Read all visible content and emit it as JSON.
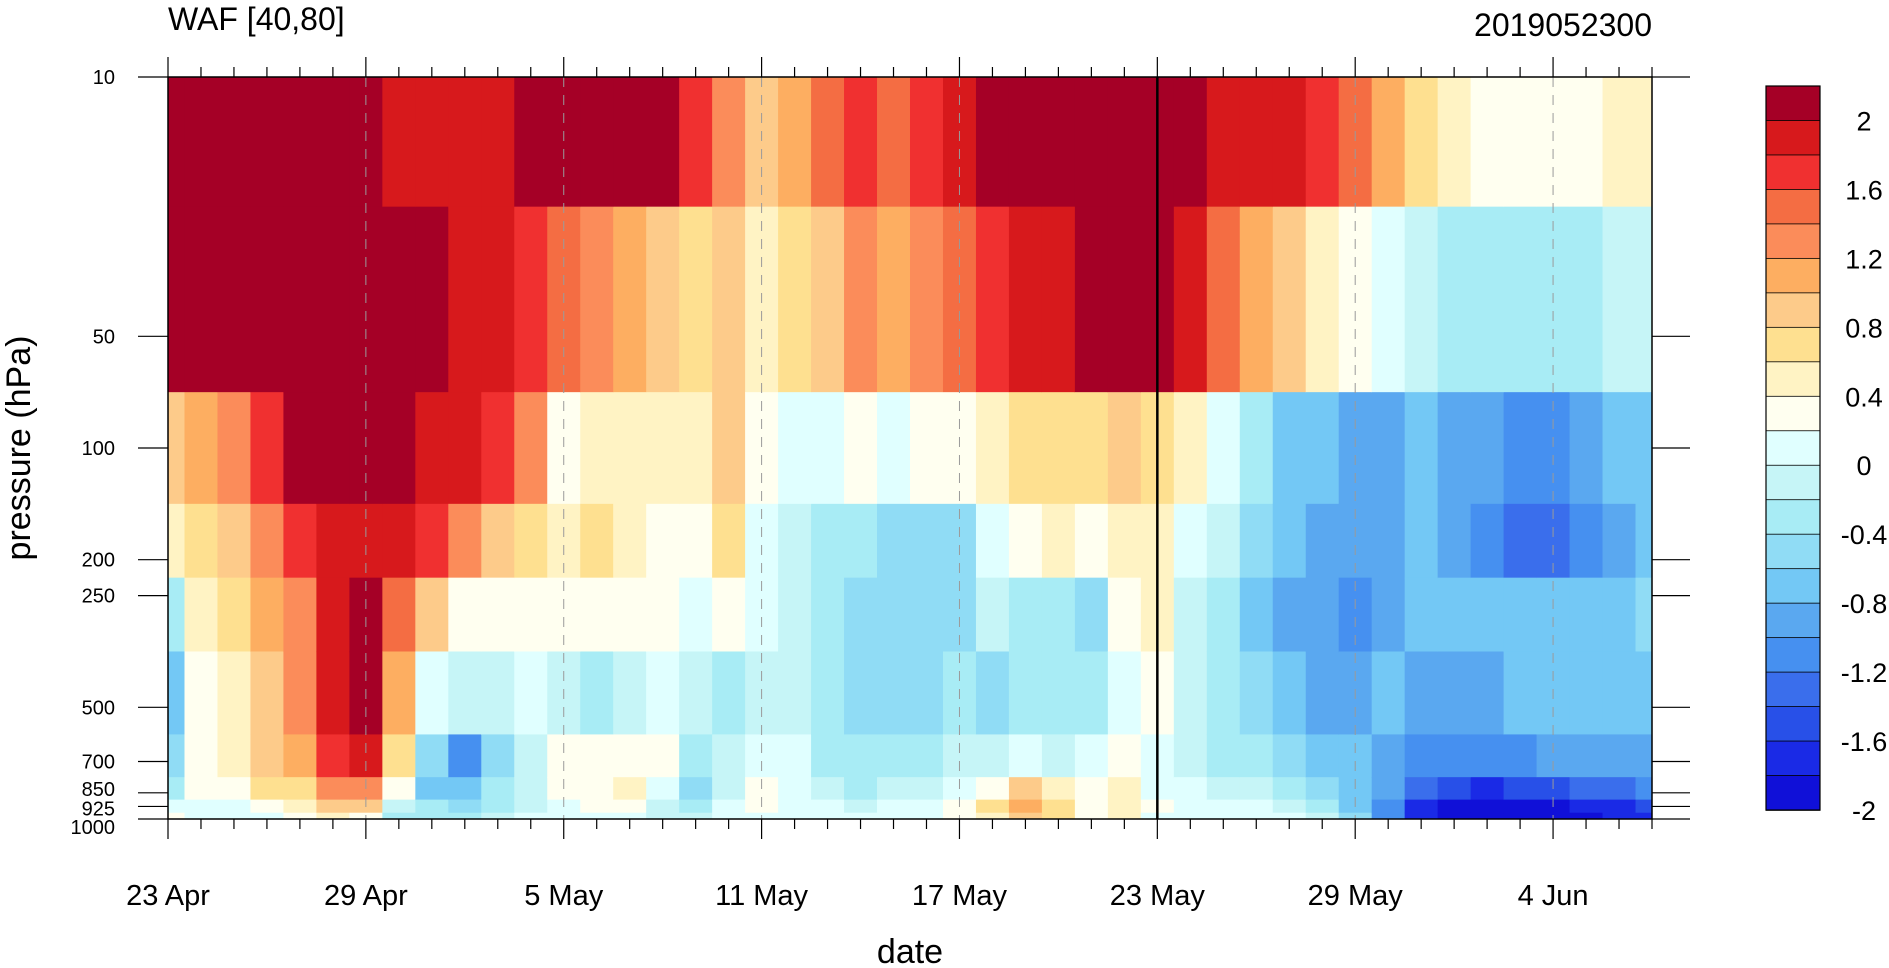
{
  "header": {
    "title": "WAF [40,80]",
    "timestamp": "2019052300"
  },
  "chart_data": {
    "type": "heatmap",
    "title": "WAF [40,80]",
    "subtitle": "2019052300",
    "xlabel": "date",
    "ylabel": "pressure (hPa)",
    "x_ticks": [
      "23 Apr",
      "29 Apr",
      "5 May",
      "11 May",
      "17 May",
      "23 May",
      "29 May",
      "4 Jun"
    ],
    "y_ticks": [
      "10",
      "50",
      "100",
      "200",
      "250",
      "500",
      "700",
      "850",
      "925",
      "1000"
    ],
    "y_log_scale": true,
    "marker_date": "23 May",
    "colorbar": {
      "labels": [
        "2",
        "1.6",
        "1.2",
        "0.8",
        "0.4",
        "0",
        "-0.4",
        "-0.8",
        "-1.2",
        "-1.6",
        "-2"
      ],
      "colors": [
        "#a50026",
        "#d7191c",
        "#f03030",
        "#f46d43",
        "#fb8c5a",
        "#fdae61",
        "#fdcb8a",
        "#fee090",
        "#fff3c4",
        "#fffff0",
        "#e0ffff",
        "#c6f5f7",
        "#a8ecf5",
        "#90dcf5",
        "#73c8f5",
        "#5aa8f0",
        "#4690f0",
        "#3a6eec",
        "#2850e8",
        "#1a2ae6",
        "#1010d8"
      ]
    },
    "columns": [
      {
        "date": "23 Apr",
        "profile": [
          2.2,
          2.2,
          0.9,
          0.5,
          -0.4,
          -0.8,
          -0.6,
          -0.5,
          0.0,
          0.2
        ]
      },
      {
        "date": "24 Apr",
        "profile": [
          2.2,
          2.2,
          1.0,
          0.6,
          0.4,
          0.3,
          0.3,
          0.2,
          0.1,
          0.1
        ]
      },
      {
        "date": "25 Apr",
        "profile": [
          2.2,
          2.2,
          1.3,
          0.8,
          0.7,
          0.5,
          0.4,
          0.3,
          0.1,
          0.1
        ]
      },
      {
        "date": "26 Apr",
        "profile": [
          2.2,
          2.2,
          1.6,
          1.2,
          1.0,
          0.9,
          0.8,
          0.6,
          0.3,
          0.1
        ]
      },
      {
        "date": "27 Apr",
        "profile": [
          2.2,
          2.2,
          2.2,
          1.6,
          1.3,
          1.2,
          1.1,
          0.7,
          0.4,
          0.2
        ]
      },
      {
        "date": "28 Apr",
        "profile": [
          2.2,
          2.2,
          2.2,
          1.9,
          1.8,
          1.8,
          1.6,
          1.2,
          0.8,
          0.5
        ]
      },
      {
        "date": "29 Apr",
        "profile": [
          2.2,
          2.2,
          2.2,
          2.0,
          2.2,
          2.2,
          1.9,
          1.2,
          0.8,
          0.3
        ]
      },
      {
        "date": "30 Apr",
        "profile": [
          1.8,
          2.2,
          2.2,
          1.9,
          1.4,
          1.0,
          0.6,
          0.2,
          -0.3,
          -0.4
        ]
      },
      {
        "date": "1 May",
        "profile": [
          1.8,
          2.2,
          2.0,
          1.6,
          0.9,
          0.0,
          -0.6,
          -0.8,
          -0.5,
          -0.5
        ]
      },
      {
        "date": "2 May",
        "profile": [
          1.8,
          2.0,
          1.8,
          1.2,
          0.3,
          -0.3,
          -1.3,
          -0.8,
          -0.6,
          -0.5
        ]
      },
      {
        "date": "3 May",
        "profile": [
          1.8,
          1.9,
          1.6,
          0.9,
          0.2,
          -0.2,
          -0.6,
          -0.5,
          -0.4,
          -0.2
        ]
      },
      {
        "date": "4 May",
        "profile": [
          2.2,
          1.6,
          1.2,
          0.6,
          0.2,
          0.0,
          -0.2,
          -0.3,
          -0.2,
          -0.1
        ]
      },
      {
        "date": "5 May",
        "profile": [
          2.2,
          1.4,
          0.3,
          0.5,
          0.2,
          -0.2,
          0.2,
          0.2,
          0.1,
          0.1
        ]
      },
      {
        "date": "6 May",
        "profile": [
          2.2,
          1.3,
          0.5,
          0.6,
          0.3,
          -0.5,
          0.2,
          0.3,
          0.2,
          0.1
        ]
      },
      {
        "date": "7 May",
        "profile": [
          2.2,
          1.1,
          0.4,
          0.5,
          0.3,
          -0.3,
          0.2,
          0.4,
          0.2,
          -0.1
        ]
      },
      {
        "date": "8 May",
        "profile": [
          2.2,
          0.9,
          0.4,
          0.3,
          0.2,
          0.0,
          0.2,
          0.1,
          -0.2,
          -0.3
        ]
      },
      {
        "date": "9 May",
        "profile": [
          1.6,
          0.7,
          0.5,
          0.3,
          0.1,
          -0.2,
          -0.4,
          -0.6,
          -0.4,
          -0.2
        ]
      },
      {
        "date": "10 May",
        "profile": [
          1.2,
          0.9,
          0.8,
          0.6,
          0.3,
          -0.4,
          -0.3,
          -0.2,
          -0.1,
          -0.1
        ]
      },
      {
        "date": "11 May",
        "profile": [
          0.8,
          0.5,
          0.3,
          0.1,
          0.0,
          -0.2,
          0.0,
          0.3,
          0.2,
          0.1
        ]
      },
      {
        "date": "12 May",
        "profile": [
          1.0,
          0.6,
          0.1,
          -0.2,
          -0.3,
          -0.2,
          -0.1,
          -0.1,
          0.0,
          0.0
        ]
      },
      {
        "date": "13 May",
        "profile": [
          1.4,
          0.9,
          0.0,
          -0.4,
          -0.4,
          -0.5,
          -0.5,
          -0.3,
          -0.1,
          0.0
        ]
      },
      {
        "date": "14 May",
        "profile": [
          1.6,
          1.2,
          0.2,
          -0.5,
          -0.6,
          -0.7,
          -0.5,
          -0.4,
          -0.2,
          -0.1
        ]
      },
      {
        "date": "15 May",
        "profile": [
          1.4,
          1.0,
          0.1,
          -0.6,
          -0.7,
          -0.6,
          -0.4,
          -0.3,
          -0.1,
          0.0
        ]
      },
      {
        "date": "16 May",
        "profile": [
          1.6,
          1.3,
          0.2,
          -0.7,
          -0.7,
          -0.6,
          -0.4,
          -0.3,
          -0.1,
          0.0
        ]
      },
      {
        "date": "17 May",
        "profile": [
          2.0,
          1.5,
          0.3,
          -0.6,
          -0.6,
          -0.5,
          -0.2,
          0.0,
          0.2,
          0.2
        ]
      },
      {
        "date": "18 May",
        "profile": [
          2.2,
          1.7,
          0.5,
          0.1,
          -0.3,
          -0.6,
          -0.2,
          0.3,
          0.6,
          0.5
        ]
      },
      {
        "date": "19 May",
        "profile": [
          2.2,
          1.9,
          0.6,
          0.3,
          -0.4,
          -0.4,
          0.1,
          0.8,
          1.0,
          0.8
        ]
      },
      {
        "date": "20 May",
        "profile": [
          2.2,
          2.0,
          0.6,
          0.4,
          -0.5,
          -0.5,
          -0.2,
          0.5,
          0.7,
          0.6
        ]
      },
      {
        "date": "21 May",
        "profile": [
          2.2,
          2.1,
          0.6,
          0.3,
          -0.6,
          -0.4,
          0.0,
          0.2,
          0.3,
          0.3
        ]
      },
      {
        "date": "22 May",
        "profile": [
          2.2,
          2.2,
          0.8,
          0.5,
          0.2,
          0.0,
          0.3,
          0.4,
          0.4,
          0.4
        ]
      },
      {
        "date": "23 May",
        "profile": [
          2.2,
          2.2,
          0.7,
          0.4,
          0.4,
          0.2,
          0.0,
          0.1,
          0.2,
          0.1
        ]
      },
      {
        "date": "24 May",
        "profile": [
          2.2,
          2.0,
          0.4,
          0.0,
          -0.2,
          -0.3,
          -0.2,
          0.0,
          0.1,
          0.1
        ]
      },
      {
        "date": "25 May",
        "profile": [
          2.0,
          1.5,
          0.0,
          -0.3,
          -0.4,
          -0.5,
          -0.4,
          -0.2,
          0.0,
          0.0
        ]
      },
      {
        "date": "26 May",
        "profile": [
          1.8,
          1.1,
          -0.5,
          -0.7,
          -0.8,
          -0.7,
          -0.5,
          -0.3,
          -0.1,
          0.0
        ]
      },
      {
        "date": "27 May",
        "profile": [
          1.8,
          0.9,
          -0.8,
          -0.9,
          -1.0,
          -0.9,
          -0.6,
          -0.4,
          -0.2,
          -0.1
        ]
      },
      {
        "date": "28 May",
        "profile": [
          1.6,
          0.5,
          -0.9,
          -1.1,
          -1.1,
          -1.0,
          -0.8,
          -0.6,
          -0.4,
          -0.3
        ]
      },
      {
        "date": "29 May",
        "profile": [
          1.4,
          0.2,
          -1.0,
          -1.1,
          -1.2,
          -1.0,
          -0.9,
          -0.8,
          -0.8,
          -0.6
        ]
      },
      {
        "date": "30 May",
        "profile": [
          1.0,
          -0.1,
          -1.0,
          -1.0,
          -1.0,
          -0.9,
          -1.0,
          -1.1,
          -1.3,
          -1.2
        ]
      },
      {
        "date": "31 May",
        "profile": [
          0.6,
          -0.3,
          -0.9,
          -0.9,
          -0.9,
          -1.0,
          -1.2,
          -1.5,
          -1.8,
          -1.9
        ]
      },
      {
        "date": "1 Jun",
        "profile": [
          0.4,
          -0.4,
          -1.0,
          -1.0,
          -0.9,
          -1.0,
          -1.3,
          -1.7,
          -2.1,
          -2.2
        ]
      },
      {
        "date": "2 Jun",
        "profile": [
          0.3,
          -0.5,
          -1.1,
          -1.2,
          -0.9,
          -1.0,
          -1.3,
          -1.8,
          -2.2,
          -2.3
        ]
      },
      {
        "date": "3 Jun",
        "profile": [
          0.2,
          -0.5,
          -1.2,
          -1.4,
          -0.9,
          -0.9,
          -1.2,
          -1.7,
          -2.1,
          -2.2
        ]
      },
      {
        "date": "4 Jun",
        "profile": [
          0.2,
          -0.5,
          -1.2,
          -1.4,
          -0.8,
          -0.8,
          -1.1,
          -1.6,
          -2.0,
          -2.1
        ]
      },
      {
        "date": "5 Jun",
        "profile": [
          0.3,
          -0.4,
          -1.1,
          -1.2,
          -0.8,
          -0.8,
          -1.1,
          -1.5,
          -1.9,
          -2.0
        ]
      },
      {
        "date": "6 Jun",
        "profile": [
          0.4,
          -0.3,
          -0.9,
          -1.0,
          -0.8,
          -0.8,
          -1.0,
          -1.4,
          -1.8,
          -1.9
        ]
      },
      {
        "date": "7 Jun",
        "profile": [
          0.4,
          -0.2,
          -0.8,
          -0.9,
          -0.7,
          -0.8,
          -1.0,
          -1.3,
          -1.7,
          -1.8
        ]
      }
    ]
  }
}
